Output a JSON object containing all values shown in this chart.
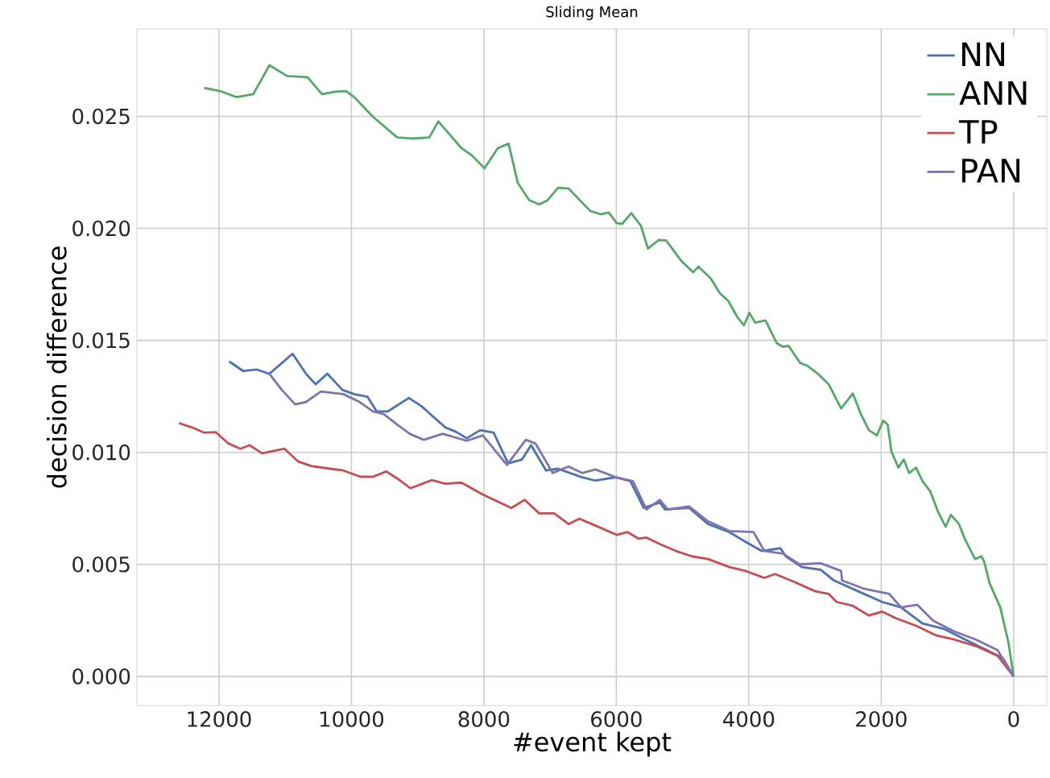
{
  "chart_data": {
    "type": "line",
    "title": "Sliding Mean",
    "xlabel": "#event kept",
    "ylabel": "decision difference",
    "xlim": [
      13240,
      -500
    ],
    "ylim": [
      -0.0013,
      0.0289
    ],
    "xticks": [
      12000,
      10000,
      8000,
      6000,
      4000,
      2000,
      0
    ],
    "yticks": [
      {
        "value": 0,
        "label": "0.000"
      },
      {
        "value": 0.005,
        "label": "0.005"
      },
      {
        "value": 0.01,
        "label": "0.010"
      },
      {
        "value": 0.015,
        "label": "0.015"
      },
      {
        "value": 0.02,
        "label": "0.020"
      },
      {
        "value": 0.025,
        "label": "0.025"
      }
    ],
    "grid": true,
    "legend": "top right",
    "line_style": "solid",
    "marker": "none",
    "series": [
      {
        "name": "NN",
        "color": "#4c72b0",
        "x": [
          11846,
          11634,
          11433,
          11239,
          10889,
          10687,
          10541,
          10364,
          10136,
          9959,
          9757,
          9619,
          9449,
          9133,
          8946,
          8582,
          8421,
          8259,
          8057,
          7853,
          7634,
          7425,
          7287,
          7061,
          6881,
          6517,
          6315,
          6007,
          5788,
          5586,
          5344,
          5263,
          4899,
          4615,
          4292,
          4049,
          3806,
          3522,
          3442,
          3199,
          2915,
          2713,
          2349,
          1984,
          1700,
          1377,
          1052,
          729,
          405,
          163,
          0
        ],
        "values": [
          0.01406,
          0.01363,
          0.0137,
          0.01351,
          0.0144,
          0.01351,
          0.01304,
          0.01351,
          0.01279,
          0.0126,
          0.01248,
          0.01183,
          0.01183,
          0.01243,
          0.01207,
          0.01111,
          0.01092,
          0.01063,
          0.01099,
          0.01088,
          0.00951,
          0.00968,
          0.01032,
          0.00919,
          0.00927,
          0.00889,
          0.00874,
          0.00889,
          0.00872,
          0.00752,
          0.00776,
          0.00745,
          0.00752,
          0.0068,
          0.00644,
          0.00601,
          0.0056,
          0.00572,
          0.00536,
          0.00488,
          0.00476,
          0.00428,
          0.0038,
          0.00332,
          0.00308,
          0.00236,
          0.00212,
          0.00164,
          0.00117,
          0.00081,
          0
        ]
      },
      {
        "name": "ANN",
        "color": "#55a868",
        "x": [
          12225,
          11982,
          11739,
          11482,
          11239,
          10971,
          10663,
          10445,
          10243,
          10080,
          9959,
          9675,
          9310,
          9067,
          8824,
          8688,
          8339,
          8178,
          7991,
          7790,
          7627,
          7488,
          7316,
          7165,
          7044,
          6881,
          6721,
          6395,
          6237,
          6114,
          5993,
          5911,
          5774,
          5628,
          5522,
          5361,
          5247,
          5020,
          4841,
          4761,
          4574,
          4437,
          4307,
          4171,
          4073,
          3991,
          3903,
          3748,
          3578,
          3481,
          3401,
          3223,
          3116,
          2956,
          2793,
          2606,
          2429,
          2307,
          2186,
          2065,
          1968,
          1902,
          1846,
          1741,
          1660,
          1579,
          1474,
          1377,
          1256,
          1149,
          1027,
          947,
          826,
          729,
          583,
          486,
          445,
          364,
          202,
          80,
          0
        ],
        "values": [
          0.02627,
          0.02613,
          0.02586,
          0.02599,
          0.02728,
          0.0268,
          0.02675,
          0.02599,
          0.0261,
          0.02613,
          0.02586,
          0.02498,
          0.02406,
          0.02401,
          0.02406,
          0.02478,
          0.02358,
          0.02325,
          0.02268,
          0.02358,
          0.02378,
          0.02203,
          0.02126,
          0.02107,
          0.02124,
          0.02181,
          0.02178,
          0.02078,
          0.02063,
          0.02071,
          0.02023,
          0.0202,
          0.02068,
          0.02011,
          0.0191,
          0.01948,
          0.01946,
          0.01855,
          0.01804,
          0.01829,
          0.01776,
          0.01711,
          0.01675,
          0.01603,
          0.01567,
          0.01623,
          0.01579,
          0.01589,
          0.01488,
          0.01471,
          0.01476,
          0.01399,
          0.01387,
          0.01351,
          0.01304,
          0.01196,
          0.01263,
          0.01171,
          0.01099,
          0.01076,
          0.01142,
          0.01124,
          0.01004,
          0.00932,
          0.00968,
          0.00908,
          0.00932,
          0.00872,
          0.00824,
          0.0074,
          0.00668,
          0.00721,
          0.0068,
          0.00608,
          0.00524,
          0.00536,
          0.00512,
          0.00416,
          0.00308,
          0.00153,
          0
        ]
      },
      {
        "name": "TP",
        "color": "#c44e52",
        "x": [
          12606,
          12404,
          12225,
          12047,
          11861,
          11676,
          11538,
          11351,
          11011,
          10809,
          10607,
          10323,
          10121,
          9862,
          9675,
          9474,
          9310,
          9109,
          8785,
          8582,
          8339,
          8016,
          7586,
          7384,
          7165,
          6939,
          6721,
          6558,
          6315,
          5993,
          5829,
          5667,
          5545,
          5344,
          5101,
          4858,
          4615,
          4292,
          4049,
          3765,
          3603,
          3320,
          2996,
          2793,
          2672,
          2429,
          2186,
          1984,
          1781,
          1457,
          1173,
          891,
          566,
          243,
          0
        ],
        "values": [
          0.01131,
          0.01111,
          0.01088,
          0.0109,
          0.0104,
          0.01016,
          0.01032,
          0.00996,
          0.01016,
          0.0096,
          0.00939,
          0.00927,
          0.00919,
          0.00891,
          0.00891,
          0.00915,
          0.00884,
          0.0084,
          0.00876,
          0.0086,
          0.00865,
          0.00812,
          0.00752,
          0.00788,
          0.00728,
          0.00728,
          0.0068,
          0.00704,
          0.00673,
          0.00632,
          0.00644,
          0.00615,
          0.0062,
          0.00591,
          0.0056,
          0.00536,
          0.00524,
          0.00488,
          0.00471,
          0.0044,
          0.00457,
          0.00423,
          0.0038,
          0.00368,
          0.00332,
          0.00315,
          0.00272,
          0.00289,
          0.0026,
          0.00224,
          0.00183,
          0.00164,
          0.00135,
          0.00092,
          0
        ]
      },
      {
        "name": "PAN",
        "color": "#8172b2",
        "x": [
          11239,
          11051,
          10850,
          10687,
          10461,
          10121,
          9878,
          9675,
          9514,
          9310,
          9109,
          8907,
          8623,
          8259,
          8016,
          7651,
          7367,
          7221,
          6961,
          6721,
          6517,
          6315,
          6007,
          5750,
          5545,
          5344,
          5222,
          4899,
          4615,
          4292,
          3928,
          3765,
          3481,
          3238,
          2915,
          2606,
          2591,
          2266,
          1878,
          1700,
          1457,
          1214,
          891,
          566,
          243,
          0
        ],
        "values": [
          0.01351,
          0.01279,
          0.01214,
          0.01225,
          0.01272,
          0.0126,
          0.01225,
          0.01183,
          0.01171,
          0.01124,
          0.01081,
          0.01056,
          0.01083,
          0.01052,
          0.01076,
          0.00944,
          0.01056,
          0.0104,
          0.00908,
          0.00937,
          0.00908,
          0.00924,
          0.00889,
          0.00872,
          0.00745,
          0.00788,
          0.00745,
          0.00759,
          0.00692,
          0.00649,
          0.00644,
          0.0056,
          0.00548,
          0.005,
          0.00505,
          0.00471,
          0.00428,
          0.00392,
          0.00368,
          0.00308,
          0.0032,
          0.00248,
          0.002,
          0.00164,
          0.00117,
          0
        ]
      }
    ]
  }
}
